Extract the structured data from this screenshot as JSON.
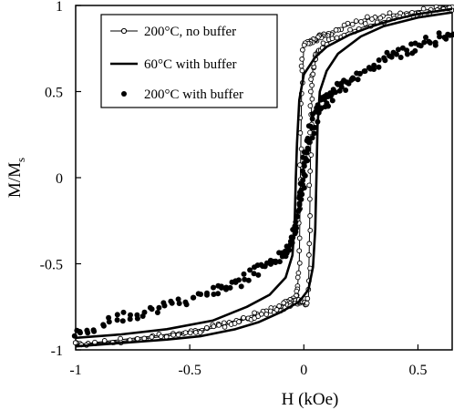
{
  "chart_data": {
    "type": "line",
    "title": "",
    "xlabel": "H (kOe)",
    "ylabel_main": "M/M",
    "ylabel_sub": "s",
    "xlim": [
      -1,
      0.65
    ],
    "ylim": [
      -1,
      1
    ],
    "xticks": [
      -1,
      -0.5,
      0,
      0.5
    ],
    "xtick_labels": [
      "-1",
      "-0.5",
      "0",
      "0.5"
    ],
    "yticks": [
      -1,
      -0.5,
      0,
      0.5,
      1
    ],
    "ytick_labels": [
      "-1",
      "-0.5",
      "0",
      "0.5",
      "1"
    ],
    "grid": false,
    "legend_position": "top-left",
    "series": [
      {
        "name": "200°C, no buffer",
        "style": "thin-line-open-circles",
        "descending": [
          [
            0.65,
            0.99
          ],
          [
            0.5,
            0.97
          ],
          [
            0.35,
            0.94
          ],
          [
            0.25,
            0.91
          ],
          [
            0.15,
            0.86
          ],
          [
            0.1,
            0.83
          ],
          [
            0.07,
            0.82
          ],
          [
            0.05,
            0.8
          ],
          [
            0.03,
            0.78
          ],
          [
            0.0,
            0.76
          ],
          [
            -0.01,
            0.5
          ],
          [
            -0.015,
            0.0
          ],
          [
            -0.02,
            -0.5
          ],
          [
            -0.03,
            -0.68
          ],
          [
            -0.06,
            -0.72
          ],
          [
            -0.1,
            -0.74
          ],
          [
            -0.2,
            -0.79
          ],
          [
            -0.3,
            -0.83
          ],
          [
            -0.45,
            -0.88
          ],
          [
            -0.6,
            -0.91
          ],
          [
            -0.8,
            -0.94
          ],
          [
            -1.0,
            -0.97
          ]
        ],
        "ascending": [
          [
            -1.0,
            -0.97
          ],
          [
            -0.8,
            -0.95
          ],
          [
            -0.6,
            -0.92
          ],
          [
            -0.45,
            -0.89
          ],
          [
            -0.3,
            -0.84
          ],
          [
            -0.2,
            -0.8
          ],
          [
            -0.1,
            -0.76
          ],
          [
            -0.05,
            -0.73
          ],
          [
            -0.02,
            -0.72
          ],
          [
            0.0,
            -0.71
          ],
          [
            0.02,
            -0.7
          ],
          [
            0.025,
            -0.3
          ],
          [
            0.03,
            0.2
          ],
          [
            0.035,
            0.5
          ],
          [
            0.04,
            0.65
          ],
          [
            0.06,
            0.72
          ],
          [
            0.1,
            0.78
          ],
          [
            0.2,
            0.85
          ],
          [
            0.35,
            0.91
          ],
          [
            0.5,
            0.95
          ],
          [
            0.65,
            0.98
          ]
        ]
      },
      {
        "name": "60°C with buffer",
        "style": "thick-line",
        "descending": [
          [
            0.65,
            0.98
          ],
          [
            0.5,
            0.95
          ],
          [
            0.4,
            0.92
          ],
          [
            0.3,
            0.88
          ],
          [
            0.2,
            0.83
          ],
          [
            0.1,
            0.76
          ],
          [
            0.05,
            0.7
          ],
          [
            0.0,
            0.6
          ],
          [
            -0.02,
            0.45
          ],
          [
            -0.03,
            0.2
          ],
          [
            -0.035,
            0.0
          ],
          [
            -0.04,
            -0.25
          ],
          [
            -0.05,
            -0.45
          ],
          [
            -0.08,
            -0.58
          ],
          [
            -0.15,
            -0.68
          ],
          [
            -0.25,
            -0.75
          ],
          [
            -0.4,
            -0.83
          ],
          [
            -0.6,
            -0.88
          ],
          [
            -0.8,
            -0.91
          ],
          [
            -1.0,
            -0.93
          ]
        ],
        "ascending": [
          [
            -1.0,
            -0.98
          ],
          [
            -0.9,
            -0.97
          ],
          [
            -0.8,
            -0.96
          ],
          [
            -0.6,
            -0.94
          ],
          [
            -0.45,
            -0.92
          ],
          [
            -0.3,
            -0.88
          ],
          [
            -0.2,
            -0.84
          ],
          [
            -0.1,
            -0.78
          ],
          [
            -0.02,
            -0.72
          ],
          [
            0.02,
            -0.65
          ],
          [
            0.04,
            -0.52
          ],
          [
            0.05,
            -0.3
          ],
          [
            0.055,
            0.0
          ],
          [
            0.06,
            0.3
          ],
          [
            0.07,
            0.5
          ],
          [
            0.1,
            0.62
          ],
          [
            0.15,
            0.72
          ],
          [
            0.25,
            0.82
          ],
          [
            0.35,
            0.88
          ],
          [
            0.5,
            0.93
          ],
          [
            0.65,
            0.96
          ]
        ]
      },
      {
        "name": "200°C with buffer",
        "style": "filled-dots",
        "descending": [
          [
            0.65,
            0.84
          ],
          [
            0.55,
            0.8
          ],
          [
            0.45,
            0.75
          ],
          [
            0.35,
            0.7
          ],
          [
            0.25,
            0.62
          ],
          [
            0.18,
            0.56
          ],
          [
            0.12,
            0.5
          ],
          [
            0.08,
            0.45
          ],
          [
            0.04,
            0.35
          ],
          [
            0.02,
            0.25
          ],
          [
            0.0,
            0.1
          ],
          [
            -0.01,
            -0.05
          ],
          [
            -0.02,
            -0.15
          ],
          [
            -0.04,
            -0.3
          ],
          [
            -0.07,
            -0.4
          ],
          [
            -0.12,
            -0.47
          ],
          [
            -0.2,
            -0.53
          ],
          [
            -0.3,
            -0.6
          ],
          [
            -0.4,
            -0.65
          ],
          [
            -0.55,
            -0.72
          ],
          [
            -0.7,
            -0.77
          ],
          [
            -0.85,
            -0.83
          ],
          [
            -1.0,
            -0.9
          ]
        ],
        "ascending": [
          [
            -1.0,
            -0.91
          ],
          [
            -0.85,
            -0.84
          ],
          [
            -0.7,
            -0.79
          ],
          [
            -0.55,
            -0.73
          ],
          [
            -0.4,
            -0.67
          ],
          [
            -0.3,
            -0.62
          ],
          [
            -0.2,
            -0.55
          ],
          [
            -0.12,
            -0.48
          ],
          [
            -0.07,
            -0.42
          ],
          [
            -0.04,
            -0.32
          ],
          [
            -0.02,
            -0.18
          ],
          [
            0.0,
            0.0
          ],
          [
            0.02,
            0.15
          ],
          [
            0.04,
            0.28
          ],
          [
            0.08,
            0.4
          ],
          [
            0.12,
            0.46
          ],
          [
            0.18,
            0.52
          ],
          [
            0.25,
            0.6
          ],
          [
            0.35,
            0.68
          ],
          [
            0.45,
            0.73
          ],
          [
            0.55,
            0.78
          ],
          [
            0.65,
            0.82
          ]
        ]
      }
    ]
  }
}
